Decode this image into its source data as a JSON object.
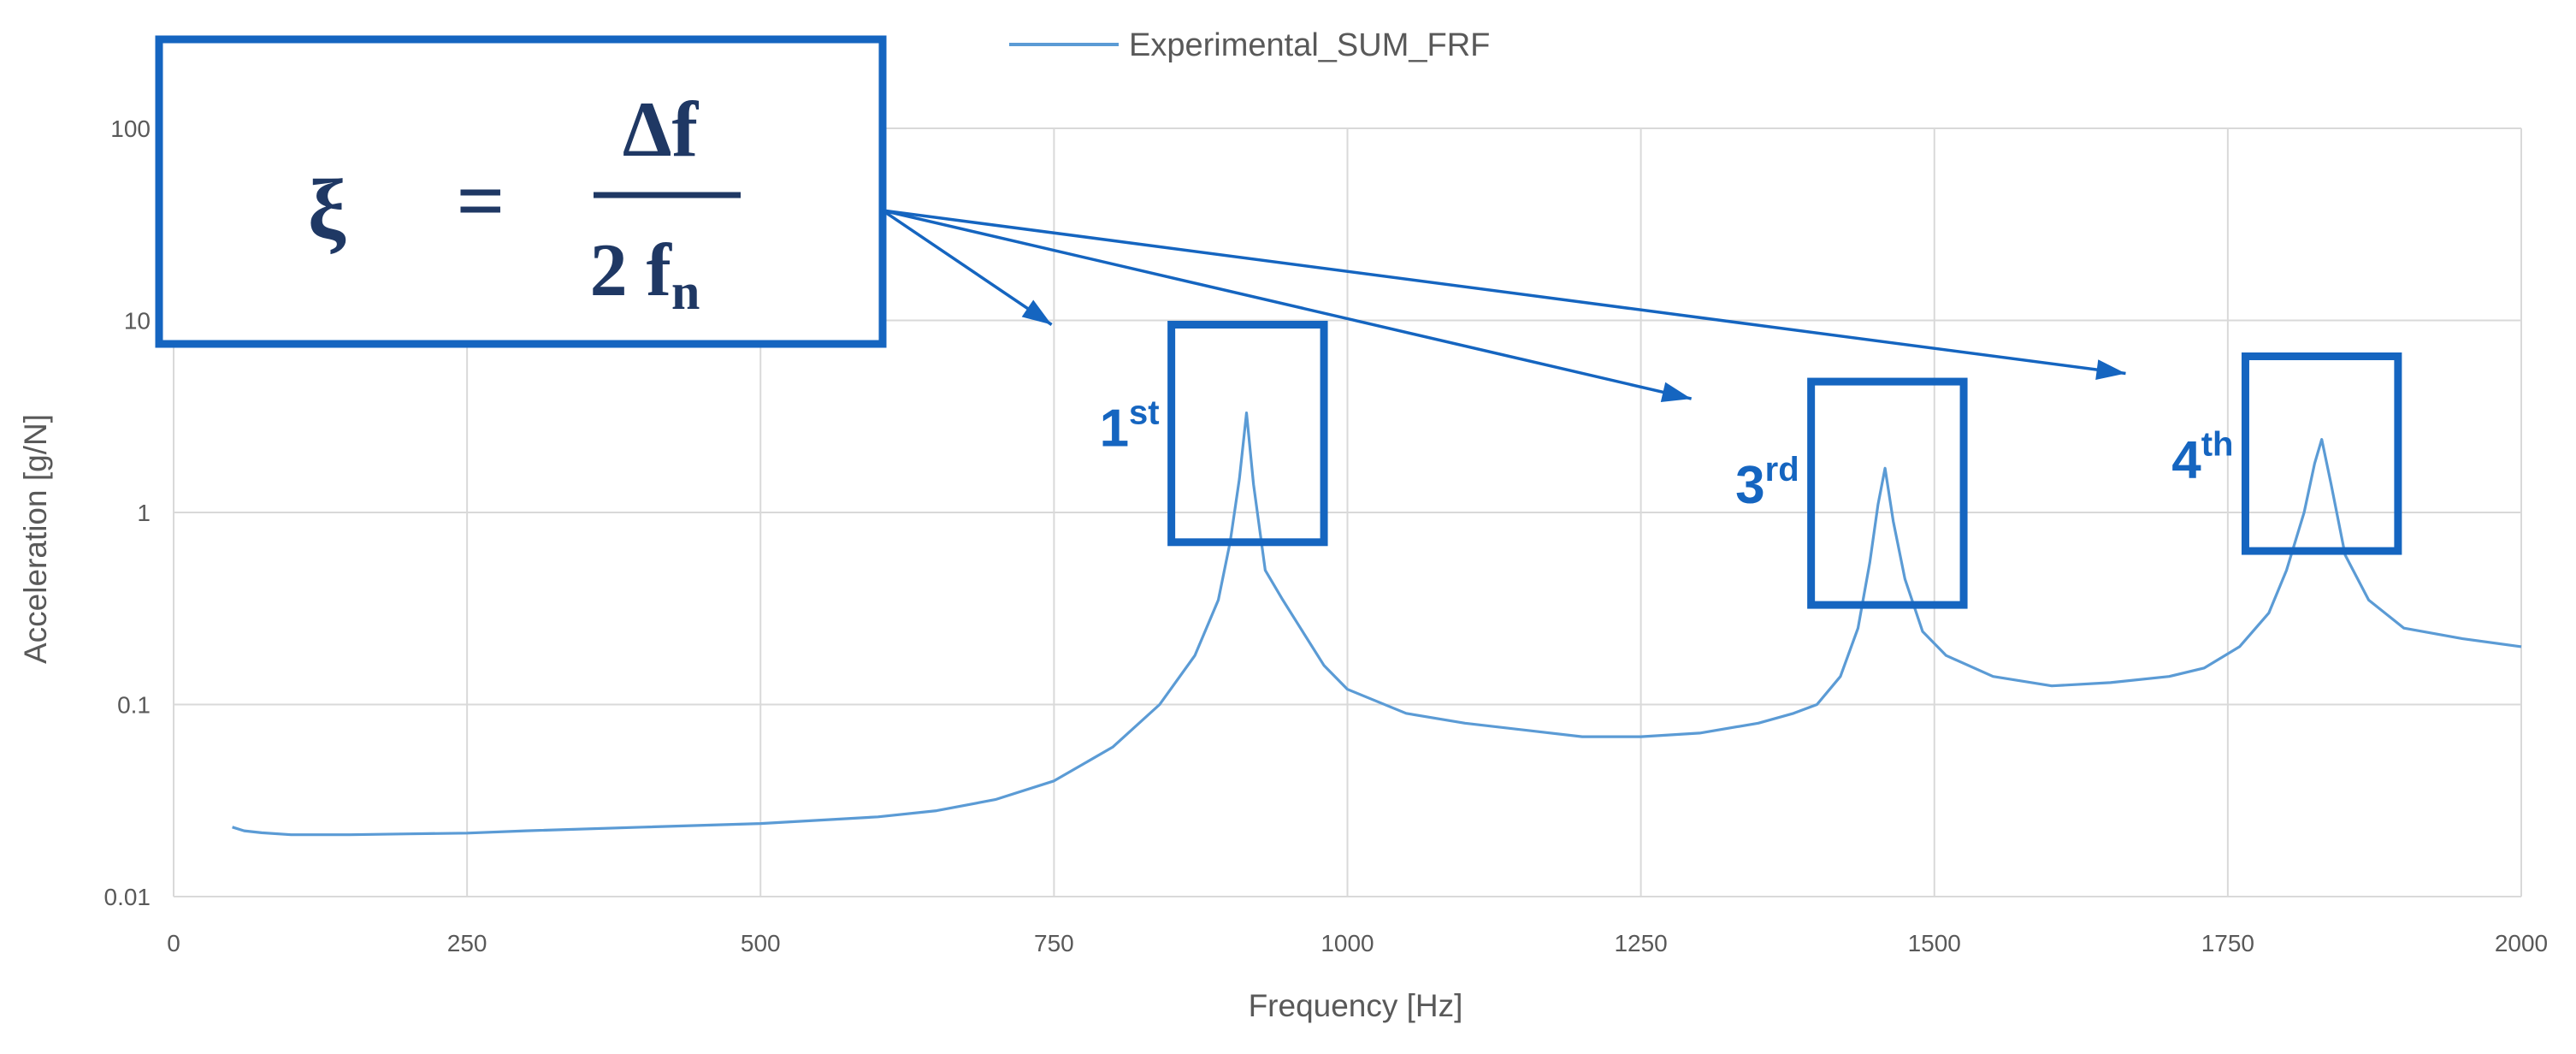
{
  "chart_data": {
    "type": "line",
    "title": "",
    "xlabel": "Frequency [Hz]",
    "ylabel": "Acceleration [g/N]",
    "xlim": [
      0,
      2000
    ],
    "ylim": [
      0.01,
      100
    ],
    "yscale": "log",
    "grid": true,
    "legend_position": "top",
    "x_ticks": [
      "0",
      "250",
      "500",
      "750",
      "1000",
      "1250",
      "1500",
      "1750",
      "2000"
    ],
    "y_ticks": [
      "0.01",
      "0.1",
      "1",
      "10",
      "100"
    ],
    "series": [
      {
        "name": "Experimental_SUM_FRF",
        "color": "#5b9bd5",
        "x": [
          50,
          60,
          75,
          100,
          150,
          200,
          250,
          300,
          400,
          500,
          600,
          650,
          700,
          750,
          800,
          840,
          870,
          890,
          900,
          908,
          914,
          920,
          930,
          945,
          960,
          980,
          1000,
          1050,
          1100,
          1200,
          1250,
          1300,
          1350,
          1380,
          1400,
          1420,
          1435,
          1445,
          1452,
          1458,
          1465,
          1475,
          1490,
          1510,
          1550,
          1600,
          1650,
          1700,
          1730,
          1760,
          1785,
          1800,
          1815,
          1824,
          1830,
          1838,
          1850,
          1870,
          1900,
          1950,
          2000
        ],
        "y": [
          0.023,
          0.022,
          0.0215,
          0.021,
          0.021,
          0.0212,
          0.0214,
          0.022,
          0.023,
          0.024,
          0.026,
          0.028,
          0.032,
          0.04,
          0.06,
          0.1,
          0.18,
          0.35,
          0.7,
          1.5,
          3.3,
          1.4,
          0.5,
          0.35,
          0.25,
          0.16,
          0.12,
          0.09,
          0.08,
          0.068,
          0.068,
          0.071,
          0.08,
          0.09,
          0.1,
          0.14,
          0.25,
          0.55,
          1.1,
          1.7,
          0.9,
          0.45,
          0.24,
          0.18,
          0.14,
          0.125,
          0.13,
          0.14,
          0.155,
          0.2,
          0.3,
          0.5,
          1.0,
          1.8,
          2.4,
          1.4,
          0.6,
          0.35,
          0.25,
          0.22,
          0.2
        ]
      }
    ],
    "annotations": {
      "formula": {
        "symbol": "ξ",
        "operator": "=",
        "numerator": "Δf",
        "denominator": "2 f",
        "denominator_subscript": "n"
      },
      "peaks": [
        {
          "label": "1",
          "suffix": "st",
          "x_range": [
            850,
            980
          ],
          "y_range": [
            0.7,
            9.5
          ]
        },
        {
          "label": "3",
          "suffix": "rd",
          "x_range": [
            1395,
            1525
          ],
          "y_range": [
            0.33,
            4.8
          ]
        },
        {
          "label": "4",
          "suffix": "th",
          "x_range": [
            1765,
            1895
          ],
          "y_range": [
            0.63,
            6.5
          ]
        }
      ]
    },
    "colors": {
      "line": "#5b9bd5",
      "annotation": "#1565c0",
      "formula_text": "#1f3864",
      "grid": "#d9d9d9",
      "tick_text": "#595959"
    }
  }
}
